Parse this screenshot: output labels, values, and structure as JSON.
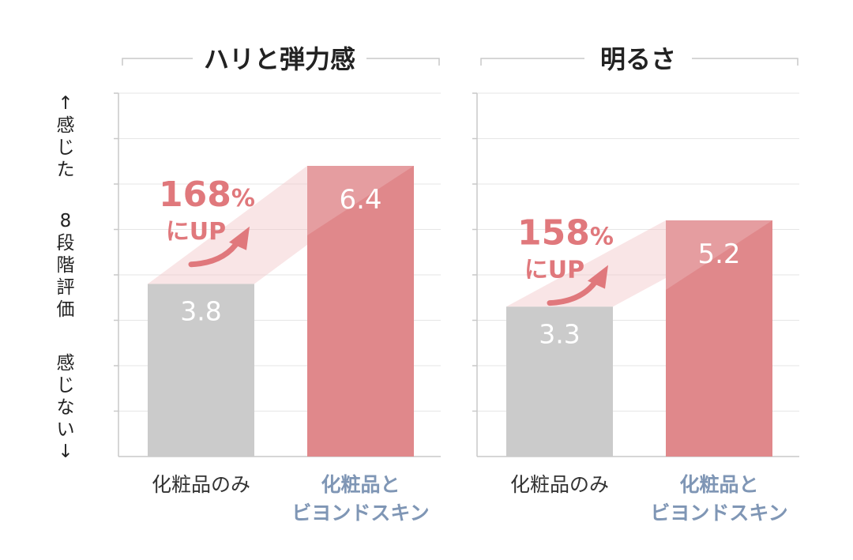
{
  "y_axis_label": {
    "top": "↑感じた",
    "middle": "8段階評価",
    "bottom": "感じない↓"
  },
  "colors": {
    "before": "#cbcbcb",
    "after": "#e0888b",
    "accent_text": "#e0787c",
    "after_label": "#7f96b5",
    "grid": "#e6e6e6",
    "axis": "#c9c9c9"
  },
  "chart_data": [
    {
      "type": "bar",
      "title": "ハリと弾力感",
      "categories": [
        "化粧品のみ",
        "化粧品と\nビヨンドスキン"
      ],
      "values": [
        3.8,
        6.4
      ],
      "value_labels": [
        "3.8",
        "6.4"
      ],
      "increase": {
        "percent": "168",
        "unit": "%",
        "text": "にUP"
      },
      "ylim": [
        0,
        8
      ],
      "grid": true
    },
    {
      "type": "bar",
      "title": "明るさ",
      "categories": [
        "化粧品のみ",
        "化粧品と\nビヨンドスキン"
      ],
      "values": [
        3.3,
        5.2
      ],
      "value_labels": [
        "3.3",
        "5.2"
      ],
      "increase": {
        "percent": "158",
        "unit": "%",
        "text": "にUP"
      },
      "ylim": [
        0,
        8
      ],
      "grid": true
    }
  ]
}
